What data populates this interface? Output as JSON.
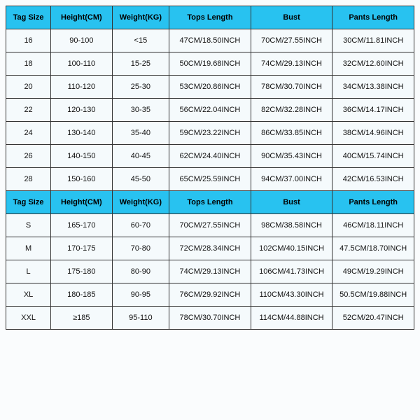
{
  "size_chart": {
    "type": "table",
    "header_bg": "#28c2f0",
    "cell_bg": "#f5fafc",
    "border_color": "#333333",
    "columns": [
      "Tag Size",
      "Height(CM)",
      "Weight(KG)",
      "Tops Length",
      "Bust",
      "Pants Length"
    ],
    "column_widths_pct": [
      11,
      15,
      14,
      20,
      20,
      20
    ],
    "sections": [
      {
        "header": [
          "Tag Size",
          "Height(CM)",
          "Weight(KG)",
          "Tops Length",
          "Bust",
          "Pants Length"
        ],
        "rows": [
          [
            "16",
            "90-100",
            "<15",
            "47CM/18.50INCH",
            "70CM/27.55INCH",
            "30CM/11.81INCH"
          ],
          [
            "18",
            "100-110",
            "15-25",
            "50CM/19.68INCH",
            "74CM/29.13INCH",
            "32CM/12.60INCH"
          ],
          [
            "20",
            "110-120",
            "25-30",
            "53CM/20.86INCH",
            "78CM/30.70INCH",
            "34CM/13.38INCH"
          ],
          [
            "22",
            "120-130",
            "30-35",
            "56CM/22.04INCH",
            "82CM/32.28INCH",
            "36CM/14.17INCH"
          ],
          [
            "24",
            "130-140",
            "35-40",
            "59CM/23.22INCH",
            "86CM/33.85INCH",
            "38CM/14.96INCH"
          ],
          [
            "26",
            "140-150",
            "40-45",
            "62CM/24.40INCH",
            "90CM/35.43INCH",
            "40CM/15.74INCH"
          ],
          [
            "28",
            "150-160",
            "45-50",
            "65CM/25.59INCH",
            "94CM/37.00INCH",
            "42CM/16.53INCH"
          ]
        ]
      },
      {
        "header": [
          "Tag Size",
          "Height(CM)",
          "Weight(KG)",
          "Tops Length",
          "Bust",
          "Pants Length"
        ],
        "rows": [
          [
            "S",
            "165-170",
            "60-70",
            "70CM/27.55INCH",
            "98CM/38.58INCH",
            "46CM/18.11INCH"
          ],
          [
            "M",
            "170-175",
            "70-80",
            "72CM/28.34INCH",
            "102CM/40.15INCH",
            "47.5CM/18.70INCH"
          ],
          [
            "L",
            "175-180",
            "80-90",
            "74CM/29.13INCH",
            "106CM/41.73INCH",
            "49CM/19.29INCH"
          ],
          [
            "XL",
            "180-185",
            "90-95",
            "76CM/29.92INCH",
            "110CM/43.30INCH",
            "50.5CM/19.88INCH"
          ],
          [
            "XXL",
            "≥185",
            "95-110",
            "78CM/30.70INCH",
            "114CM/44.88INCH",
            "52CM/20.47INCH"
          ]
        ]
      }
    ]
  }
}
